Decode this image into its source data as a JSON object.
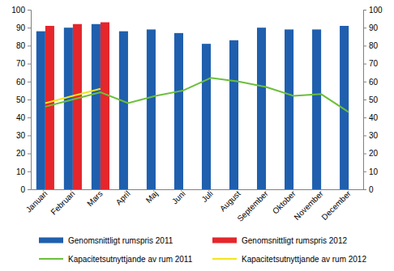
{
  "chart_data": {
    "type": "bar",
    "categories": [
      "Januari",
      "Februari",
      "Mars",
      "April",
      "Maj",
      "Juni",
      "Juli",
      "August",
      "September",
      "Oktober",
      "November",
      "December"
    ],
    "series": [
      {
        "name": "Genomsnittligt rumspris 2011",
        "type": "bar",
        "color": "#1f5fae",
        "values": [
          88,
          90,
          92,
          88,
          89,
          87,
          81,
          83,
          90,
          89,
          89,
          91
        ]
      },
      {
        "name": "Genomsnittligt rumspris 2012",
        "type": "bar",
        "color": "#e5262b",
        "values": [
          91,
          92,
          93,
          null,
          null,
          null,
          null,
          null,
          null,
          null,
          null,
          null
        ]
      },
      {
        "name": "Kapacitetsutnyttjande av rum 2011",
        "type": "line",
        "axis": "y2",
        "color": "#6cbf3b",
        "values": [
          46,
          50,
          54,
          48,
          52,
          55,
          62,
          60,
          57,
          52,
          53,
          43
        ]
      },
      {
        "name": "Kapacitetsutnyttjande av rum 2012",
        "type": "line",
        "axis": "y2",
        "color": "#f3e51a",
        "values": [
          48,
          52,
          56,
          null,
          null,
          null,
          null,
          null,
          null,
          null,
          null,
          null
        ]
      }
    ],
    "ylim": [
      0,
      100
    ],
    "yticks": [
      0,
      10,
      20,
      30,
      40,
      50,
      60,
      70,
      80,
      90,
      100
    ],
    "y2lim": [
      0,
      100
    ],
    "y2ticks": [
      0,
      10,
      20,
      30,
      40,
      50,
      60,
      70,
      80,
      90,
      100
    ],
    "grid": false,
    "legend": "bottom"
  }
}
